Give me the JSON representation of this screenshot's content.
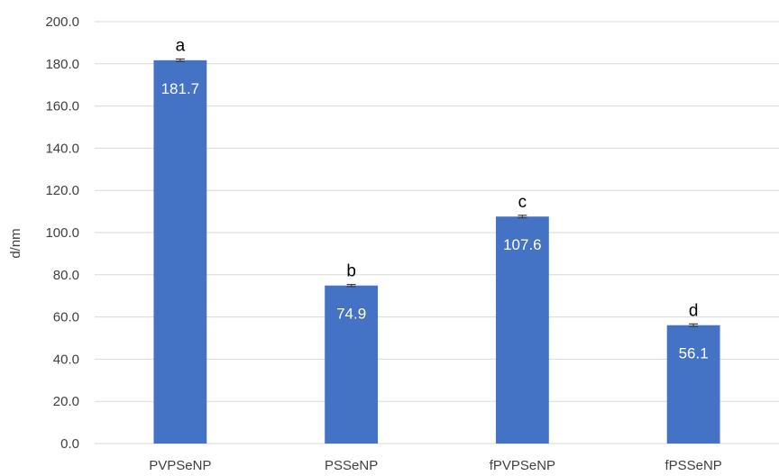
{
  "chart_data": {
    "type": "bar",
    "categories": [
      "PVPSeNP",
      "PSSeNP",
      "fPVPSeNP",
      "fPSSeNP"
    ],
    "values": [
      181.7,
      74.9,
      107.6,
      56.1
    ],
    "data_labels": [
      "181.7",
      "74.9",
      "107.6",
      "56.1"
    ],
    "significance_letters": [
      "a",
      "b",
      "c",
      "d"
    ],
    "error": [
      0.6,
      0.5,
      0.6,
      0.6
    ],
    "ylabel": "d/nm",
    "xlabel": "",
    "ylim": [
      0,
      200
    ],
    "yticks": [
      "0.0",
      "20.0",
      "40.0",
      "60.0",
      "80.0",
      "100.0",
      "120.0",
      "140.0",
      "160.0",
      "180.0",
      "200.0"
    ],
    "grid": true,
    "legend": "none",
    "bar_color": "#4472c4"
  }
}
